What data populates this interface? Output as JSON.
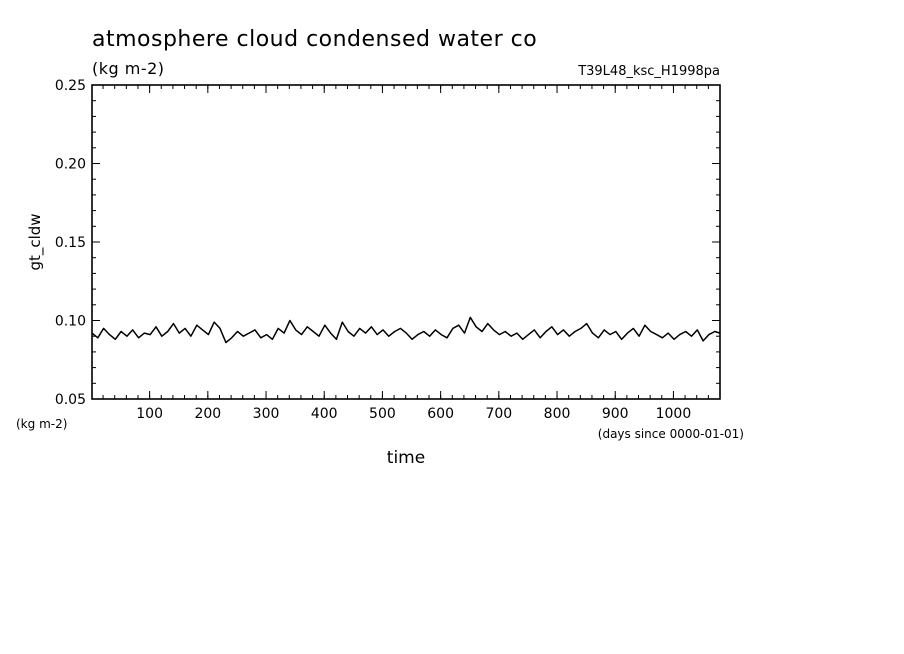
{
  "title": "atmosphere cloud condensed water co",
  "subtitle_units": "(kg m-2)",
  "run_name": "T39L48_ksc_H1998pa",
  "chart_data": {
    "type": "line",
    "xlabel": "time",
    "xunits": "(days since 0000-01-01)",
    "ylabel": "gt_cldw",
    "yunits": "(kg m-2)",
    "xlim": [
      1,
      1080
    ],
    "ylim": [
      0.05,
      0.25
    ],
    "x_ticks": [
      100,
      200,
      300,
      400,
      500,
      600,
      700,
      800,
      900,
      1000
    ],
    "y_ticks": [
      "0.05",
      "0.10",
      "0.15",
      "0.20",
      "0.25"
    ],
    "grid": false,
    "series": [
      {
        "x": [
          1,
          11,
          21,
          31,
          41,
          51,
          61,
          71,
          81,
          91,
          101,
          111,
          121,
          131,
          141,
          151,
          161,
          171,
          181,
          191,
          201,
          211,
          221,
          231,
          241,
          251,
          261,
          271,
          281,
          291,
          301,
          311,
          321,
          331,
          341,
          351,
          361,
          371,
          381,
          391,
          401,
          411,
          421,
          431,
          441,
          451,
          461,
          471,
          481,
          491,
          501,
          511,
          521,
          531,
          541,
          551,
          561,
          571,
          581,
          591,
          601,
          611,
          621,
          631,
          641,
          651,
          661,
          671,
          681,
          691,
          701,
          711,
          721,
          731,
          741,
          751,
          761,
          771,
          781,
          791,
          801,
          811,
          821,
          831,
          841,
          851,
          861,
          871,
          881,
          891,
          901,
          911,
          921,
          931,
          941,
          951,
          961,
          971,
          981,
          991,
          1001,
          1011,
          1021,
          1031,
          1041,
          1051,
          1061,
          1071,
          1080
        ],
        "y": [
          0.092,
          0.089,
          0.095,
          0.091,
          0.088,
          0.093,
          0.09,
          0.094,
          0.089,
          0.092,
          0.091,
          0.096,
          0.09,
          0.093,
          0.098,
          0.092,
          0.095,
          0.09,
          0.097,
          0.094,
          0.091,
          0.099,
          0.095,
          0.086,
          0.089,
          0.093,
          0.09,
          0.092,
          0.094,
          0.089,
          0.091,
          0.088,
          0.095,
          0.092,
          0.1,
          0.094,
          0.091,
          0.096,
          0.093,
          0.09,
          0.097,
          0.092,
          0.088,
          0.099,
          0.093,
          0.09,
          0.095,
          0.092,
          0.096,
          0.091,
          0.094,
          0.09,
          0.093,
          0.095,
          0.092,
          0.088,
          0.091,
          0.093,
          0.09,
          0.094,
          0.091,
          0.089,
          0.095,
          0.097,
          0.092,
          0.102,
          0.096,
          0.093,
          0.098,
          0.094,
          0.091,
          0.093,
          0.09,
          0.092,
          0.088,
          0.091,
          0.094,
          0.089,
          0.093,
          0.096,
          0.091,
          0.094,
          0.09,
          0.093,
          0.095,
          0.098,
          0.092,
          0.089,
          0.094,
          0.091,
          0.093,
          0.088,
          0.092,
          0.095,
          0.09,
          0.097,
          0.093,
          0.091,
          0.089,
          0.092,
          0.088,
          0.091,
          0.093,
          0.09,
          0.094,
          0.087,
          0.091,
          0.093,
          0.092
        ]
      }
    ]
  }
}
